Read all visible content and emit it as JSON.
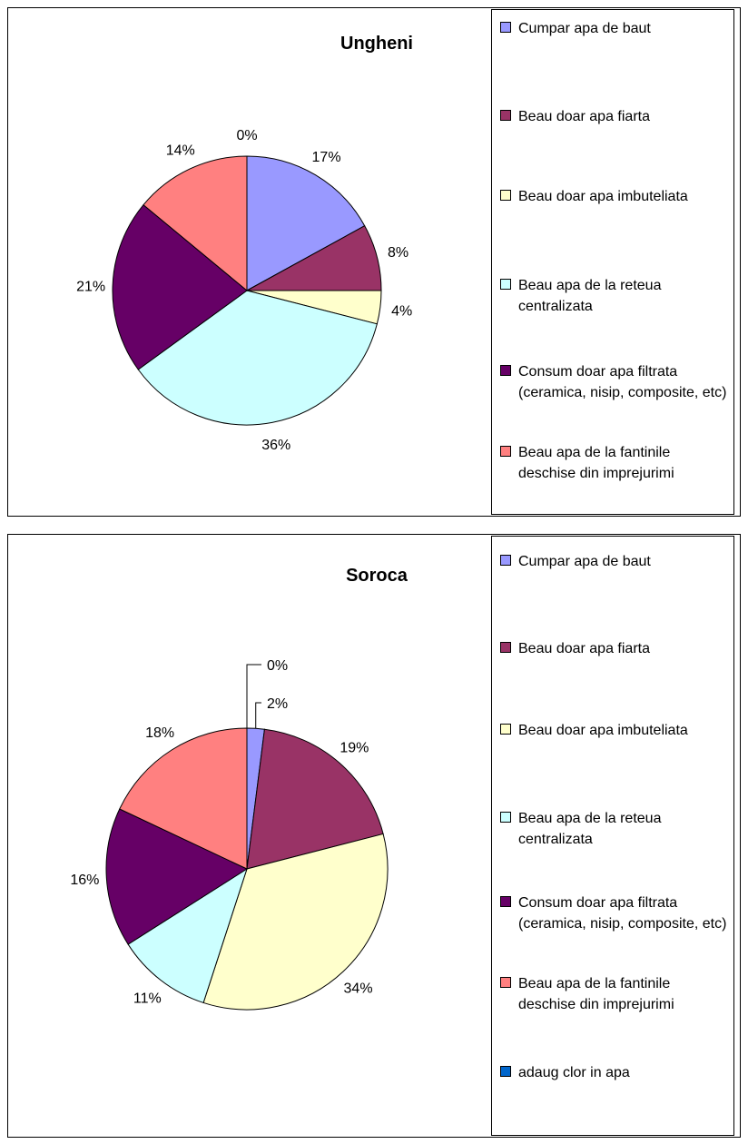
{
  "chart_data": [
    {
      "type": "pie",
      "title": "Ungheni",
      "categories": [
        "Cumpar apa de baut",
        "Beau doar apa fiarta",
        "Beau doar apa imbuteliata",
        "Beau apa de la reteua centralizata",
        "Consum doar apa filtrata (ceramica, nisip, composite, etc)",
        "Beau apa de la fantinile deschise din imprejurimi",
        null
      ],
      "values": [
        17,
        8,
        4,
        36,
        21,
        14,
        0
      ],
      "value_labels": [
        "17%",
        "8%",
        "4%",
        "36%",
        "21%",
        "14%",
        "0%"
      ],
      "colors": [
        "#9999ff",
        "#993366",
        "#ffffcc",
        "#ccffff",
        "#660066",
        "#ff8080",
        "#0066cc"
      ]
    },
    {
      "type": "pie",
      "title": "Soroca",
      "categories": [
        "Cumpar apa de baut",
        "Beau doar apa fiarta",
        "Beau doar apa imbuteliata",
        "Beau apa de la reteua centralizata",
        "Consum doar apa filtrata (ceramica, nisip, composite, etc)",
        "Beau apa de la fantinile deschise din imprejurimi",
        "adaug clor in apa"
      ],
      "values": [
        2,
        19,
        34,
        11,
        16,
        18,
        0
      ],
      "value_labels": [
        "2%",
        "19%",
        "34%",
        "11%",
        "16%",
        "18%",
        "0%"
      ],
      "colors": [
        "#9999ff",
        "#993366",
        "#ffffcc",
        "#ccffff",
        "#660066",
        "#ff8080",
        "#0066cc"
      ]
    }
  ]
}
